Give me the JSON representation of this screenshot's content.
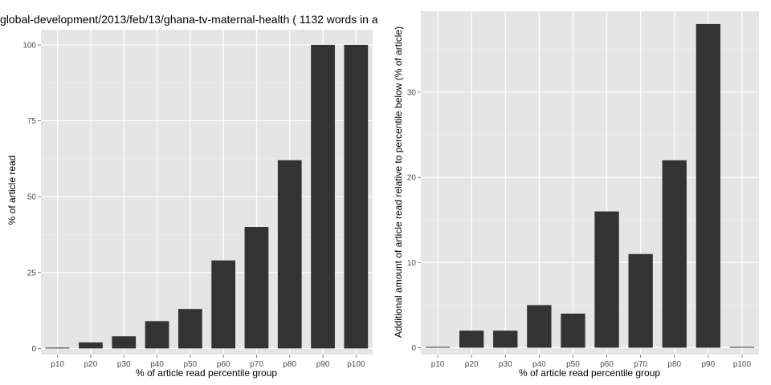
{
  "chart_data": [
    {
      "type": "bar",
      "title": "global-development/2013/feb/13/ghana-tv-maternal-health ( 1132 words in a",
      "xlabel": "% of article read percentile group",
      "ylabel": "% of article read",
      "categories": [
        "p10",
        "p20",
        "p30",
        "p40",
        "p50",
        "p60",
        "p70",
        "p80",
        "p90",
        "p100"
      ],
      "values": [
        0,
        2,
        4,
        9,
        13,
        29,
        40,
        62,
        100,
        100
      ],
      "ylim": [
        -2,
        105
      ],
      "yticks": [
        0,
        25,
        50,
        75,
        100
      ],
      "grid": true,
      "colors": {
        "panel": "#e5e5e5",
        "bar": "#333333",
        "grid": "#ffffff",
        "minor_grid": "#f2f2f2"
      }
    },
    {
      "type": "bar",
      "title": "",
      "xlabel": "% of article read percentile group",
      "ylabel": "Additional amount of article read relative to percentile below (% of article)",
      "categories": [
        "p10",
        "p20",
        "p30",
        "p40",
        "p50",
        "p60",
        "p70",
        "p80",
        "p90",
        "p100"
      ],
      "values": [
        0,
        2,
        2,
        5,
        4,
        16,
        11,
        22,
        38,
        0
      ],
      "ylim": [
        -0.8,
        39.5
      ],
      "yticks": [
        0,
        10,
        20,
        30
      ],
      "grid": true,
      "colors": {
        "panel": "#e5e5e5",
        "bar": "#333333",
        "grid": "#ffffff",
        "minor_grid": "#f2f2f2"
      }
    }
  ]
}
